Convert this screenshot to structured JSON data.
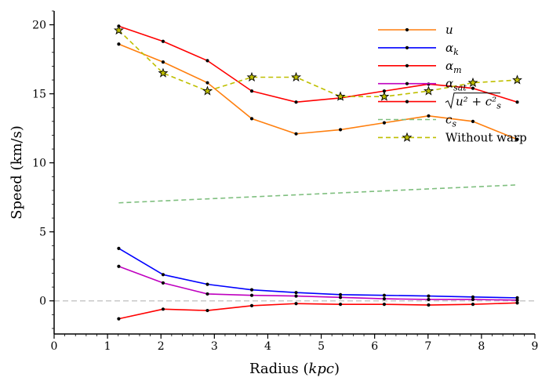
{
  "chart_data": {
    "type": "line",
    "xlabel_main": "Radius (",
    "xlabel_italic": "kpc",
    "xlabel_end": ")",
    "ylabel": "Speed (km/s)",
    "xlim": [
      0,
      9
    ],
    "ylim": [
      -2.4,
      21
    ],
    "xticks": [
      0,
      1,
      2,
      3,
      4,
      5,
      6,
      7,
      8,
      9
    ],
    "yticks": [
      0,
      5,
      10,
      15,
      20
    ],
    "reference_line_y": 0,
    "series": [
      {
        "name": "u",
        "color": "#ff7f0e",
        "style": "solid",
        "marker": "dot",
        "x": [
          1.21,
          2.04,
          2.87,
          3.7,
          4.53,
          5.36,
          6.18,
          7.01,
          7.84,
          8.67
        ],
        "y": [
          18.6,
          17.3,
          15.8,
          13.2,
          12.1,
          12.4,
          12.9,
          13.4,
          13.0,
          11.7
        ]
      },
      {
        "name": "α_k",
        "color": "#0000ff",
        "style": "solid",
        "marker": "dot",
        "x": [
          1.21,
          2.04,
          2.87,
          3.7,
          4.53,
          5.36,
          6.18,
          7.01,
          7.84,
          8.67
        ],
        "y": [
          3.8,
          1.9,
          1.2,
          0.8,
          0.6,
          0.45,
          0.4,
          0.35,
          0.28,
          0.22
        ]
      },
      {
        "name": "α_m",
        "color": "#ff0000",
        "style": "solid",
        "marker": "dot",
        "x": [
          1.21,
          2.04,
          2.87,
          3.7,
          4.53,
          5.36,
          6.18,
          7.01,
          7.84,
          8.67
        ],
        "y": [
          -1.3,
          -0.6,
          -0.7,
          -0.35,
          -0.2,
          -0.25,
          -0.25,
          -0.3,
          -0.25,
          -0.15
        ]
      },
      {
        "name": "α_sat",
        "color": "#bf00bf",
        "style": "solid",
        "marker": "dot",
        "x": [
          1.21,
          2.04,
          2.87,
          3.7,
          4.53,
          5.36,
          6.18,
          7.01,
          7.84,
          8.67
        ],
        "y": [
          2.5,
          1.3,
          0.5,
          0.4,
          0.35,
          0.25,
          0.15,
          0.1,
          0.1,
          0.05
        ]
      },
      {
        "name": "sqrt(u²+c_s²)",
        "color": "#ff0000",
        "style": "solid",
        "marker": "dot",
        "x": [
          1.21,
          2.04,
          2.87,
          3.7,
          4.53,
          5.36,
          6.18,
          7.01,
          7.84,
          8.67
        ],
        "y": [
          19.9,
          18.8,
          17.4,
          15.2,
          14.4,
          14.7,
          15.2,
          15.7,
          15.4,
          14.4
        ]
      },
      {
        "name": "c_s",
        "color": "#7fbf7f",
        "style": "dashed",
        "marker": "none",
        "x": [
          1.21,
          8.67
        ],
        "y": [
          7.1,
          8.4
        ]
      },
      {
        "name": "Without warp",
        "color": "#bfbf00",
        "style": "dashed",
        "marker": "star",
        "x": [
          1.21,
          2.04,
          2.87,
          3.7,
          4.53,
          5.36,
          6.18,
          7.01,
          7.84,
          8.67
        ],
        "y": [
          19.6,
          16.5,
          15.2,
          16.2,
          16.2,
          14.8,
          14.8,
          15.2,
          15.8,
          16.0
        ]
      }
    ],
    "legend": [
      {
        "label": "u",
        "sub": "",
        "kind": "math",
        "color": "#ff7f0e",
        "style": "solid",
        "marker": "dot"
      },
      {
        "label": "α",
        "sub": "k",
        "kind": "math",
        "color": "#0000ff",
        "style": "solid",
        "marker": "dot"
      },
      {
        "label": "α",
        "sub": "m",
        "kind": "math",
        "color": "#ff0000",
        "style": "solid",
        "marker": "dot"
      },
      {
        "label": "α",
        "sub": "sat",
        "kind": "math",
        "color": "#bf00bf",
        "style": "solid",
        "marker": "dot"
      },
      {
        "label": "u² + c²",
        "sub": "s",
        "kind": "sqrt",
        "color": "#ff0000",
        "style": "solid",
        "marker": "dot"
      },
      {
        "label": "c",
        "sub": "s",
        "kind": "math",
        "color": "#7fbf7f",
        "style": "dashed",
        "marker": "none"
      },
      {
        "label": "Without warp",
        "sub": "",
        "kind": "text",
        "color": "#bfbf00",
        "style": "dashed",
        "marker": "star"
      }
    ],
    "legend_position": "top-right"
  }
}
